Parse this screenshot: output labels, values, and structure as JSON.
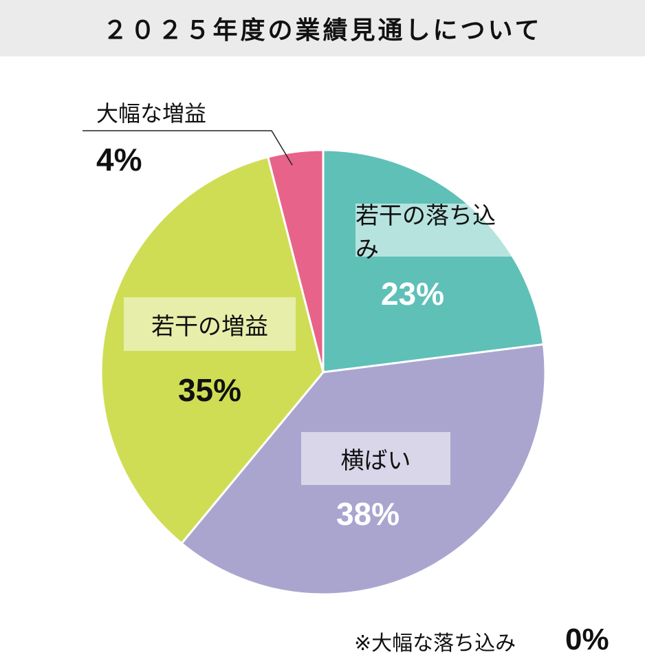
{
  "chart_data": {
    "type": "pie",
    "title": "２０２５年度の業績見通しについて",
    "start": "top",
    "direction": "clockwise",
    "slices": [
      {
        "label": "若干の落ち込み",
        "value": 23,
        "display": "23%",
        "color": "#5fc0b8"
      },
      {
        "label": "横ばい",
        "value": 38,
        "display": "38%",
        "color": "#aaa5cf"
      },
      {
        "label": "若干の増益",
        "value": 35,
        "display": "35%",
        "color": "#cfdd55"
      },
      {
        "label": "大幅な増益",
        "value": 4,
        "display": "4%",
        "color": "#e8638a"
      }
    ],
    "footnote": {
      "label": "※大幅な落ち込み",
      "value": "0%"
    }
  }
}
